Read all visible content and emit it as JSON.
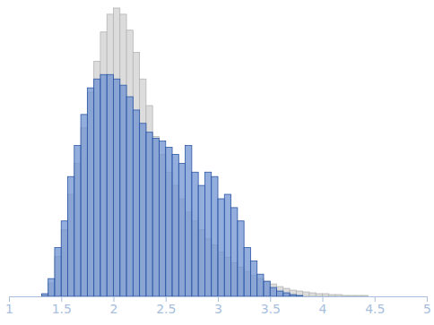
{
  "chart_data": {
    "type": "histogram",
    "bins": [
      1.3125,
      1.375,
      1.4375,
      1.5,
      1.5625,
      1.625,
      1.6875,
      1.75,
      1.8125,
      1.875,
      1.9375,
      2,
      2.0625,
      2.125,
      2.1875,
      2.25,
      2.3125,
      2.375,
      2.4375,
      2.5,
      2.5625,
      2.625,
      2.6875,
      2.75,
      2.8125,
      2.875,
      2.9375,
      3,
      3.0625,
      3.125,
      3.1875,
      3.25,
      3.3125,
      3.375,
      3.4375,
      3.5,
      3.5625,
      3.625,
      3.6875,
      3.75,
      3.8125,
      3.875,
      3.9375,
      4,
      4.0625,
      4.125,
      4.1875,
      4.25,
      4.3125,
      4.375,
      4.4375,
      4.5,
      4.5625
    ],
    "series": [
      {
        "color": "#dcdcdc",
        "values": [
          2,
          15,
          45,
          75,
          115,
          150,
          190,
          230,
          265,
          298,
          318,
          325,
          318,
          300,
          275,
          245,
          215,
          180,
          160,
          140,
          125,
          110,
          95,
          85,
          75,
          65,
          58,
          50,
          44,
          38,
          33,
          28,
          24,
          20,
          17,
          14,
          11,
          9,
          7,
          6,
          5,
          4,
          3,
          3,
          2,
          2,
          1,
          1,
          1,
          1,
          0,
          0
        ]
      },
      {
        "color": "#6f93d1",
        "values": [
          3,
          20,
          55,
          85,
          135,
          170,
          205,
          235,
          245,
          250,
          250,
          245,
          238,
          225,
          210,
          195,
          185,
          178,
          175,
          168,
          160,
          150,
          170,
          140,
          125,
          140,
          135,
          110,
          115,
          100,
          85,
          55,
          40,
          25,
          17,
          10,
          6,
          4,
          2,
          1,
          0,
          0,
          0,
          0,
          0,
          0,
          0,
          0,
          0,
          0,
          0,
          0
        ]
      }
    ],
    "xlim": [
      1,
      5
    ],
    "xticks": [
      1,
      1.5,
      2,
      2.5,
      3,
      3.5,
      4,
      4.5,
      5
    ],
    "ylim": [
      0,
      330
    ],
    "tick_labels": "x",
    "grid": false
  }
}
